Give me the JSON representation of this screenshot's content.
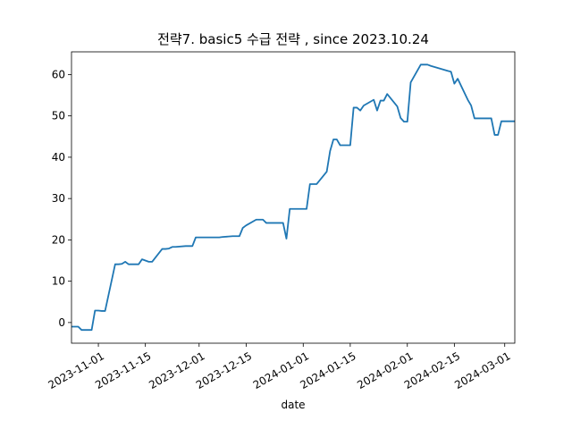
{
  "chart_data": {
    "type": "line",
    "title": "전략7. basic5 수급 전략 , since 2023.10.24",
    "xlabel": "date",
    "ylabel": "",
    "xlim": [
      "2023-10-24",
      "2024-03-04"
    ],
    "ylim": [
      -5,
      65.5
    ],
    "yticks": [
      0,
      10,
      20,
      30,
      40,
      50,
      60
    ],
    "xticks": [
      "2023-11-01",
      "2023-11-15",
      "2023-12-01",
      "2023-12-15",
      "2024-01-01",
      "2024-01-15",
      "2024-02-01",
      "2024-02-15",
      "2024-03-01"
    ],
    "grid": false,
    "line_color": "#1f77b4",
    "series": [
      {
        "x": [
          "2023-10-24",
          "2023-10-26",
          "2023-10-27",
          "2023-10-30",
          "2023-10-31",
          "2023-11-01",
          "2023-11-02",
          "2023-11-03",
          "2023-11-06",
          "2023-11-07",
          "2023-11-08",
          "2023-11-09",
          "2023-11-10",
          "2023-11-13",
          "2023-11-14",
          "2023-11-15",
          "2023-11-16",
          "2023-11-17",
          "2023-11-20",
          "2023-11-21",
          "2023-11-22",
          "2023-11-23",
          "2023-11-24",
          "2023-11-27",
          "2023-11-28",
          "2023-11-29",
          "2023-11-30",
          "2023-12-01",
          "2023-12-04",
          "2023-12-05",
          "2023-12-06",
          "2023-12-07",
          "2023-12-08",
          "2023-12-11",
          "2023-12-12",
          "2023-12-13",
          "2023-12-14",
          "2023-12-15",
          "2023-12-18",
          "2023-12-19",
          "2023-12-20",
          "2023-12-21",
          "2023-12-22",
          "2023-12-26",
          "2023-12-27",
          "2023-12-28",
          "2024-01-02",
          "2024-01-03",
          "2024-01-04",
          "2024-01-05",
          "2024-01-08",
          "2024-01-09",
          "2024-01-10",
          "2024-01-11",
          "2024-01-12",
          "2024-01-15",
          "2024-01-16",
          "2024-01-17",
          "2024-01-18",
          "2024-01-19",
          "2024-01-22",
          "2024-01-23",
          "2024-01-24",
          "2024-01-25",
          "2024-01-26",
          "2024-01-29",
          "2024-01-30",
          "2024-01-31",
          "2024-02-01",
          "2024-02-02",
          "2024-02-05",
          "2024-02-06",
          "2024-02-07",
          "2024-02-08",
          "2024-02-13",
          "2024-02-14",
          "2024-02-15",
          "2024-02-16",
          "2024-02-19",
          "2024-02-20",
          "2024-02-21",
          "2024-02-22",
          "2024-02-23",
          "2024-02-26",
          "2024-02-27",
          "2024-02-28",
          "2024-02-29",
          "2024-03-04"
        ],
        "y": [
          -1.0,
          -1.0,
          -1.8,
          -1.8,
          2.9,
          2.9,
          2.8,
          2.8,
          14.1,
          14.1,
          14.2,
          14.7,
          14.1,
          14.1,
          15.3,
          15.0,
          14.7,
          14.7,
          17.8,
          17.8,
          17.9,
          18.3,
          18.3,
          18.5,
          18.5,
          18.5,
          20.6,
          20.6,
          20.6,
          20.6,
          20.6,
          20.6,
          20.7,
          20.9,
          20.9,
          20.9,
          22.9,
          23.5,
          24.9,
          24.9,
          24.9,
          24.1,
          24.1,
          24.1,
          20.3,
          27.5,
          27.5,
          33.5,
          33.5,
          33.5,
          36.5,
          41.5,
          44.3,
          44.3,
          42.9,
          42.9,
          52.0,
          52.0,
          51.3,
          52.5,
          53.9,
          51.3,
          53.7,
          53.7,
          55.3,
          52.3,
          49.5,
          48.6,
          48.6,
          58.1,
          62.4,
          62.4,
          62.4,
          62.1,
          60.9,
          60.7,
          57.8,
          59.0,
          53.9,
          52.5,
          49.4,
          49.4,
          49.4,
          49.4,
          45.4,
          45.4,
          48.7,
          48.7
        ]
      }
    ]
  }
}
